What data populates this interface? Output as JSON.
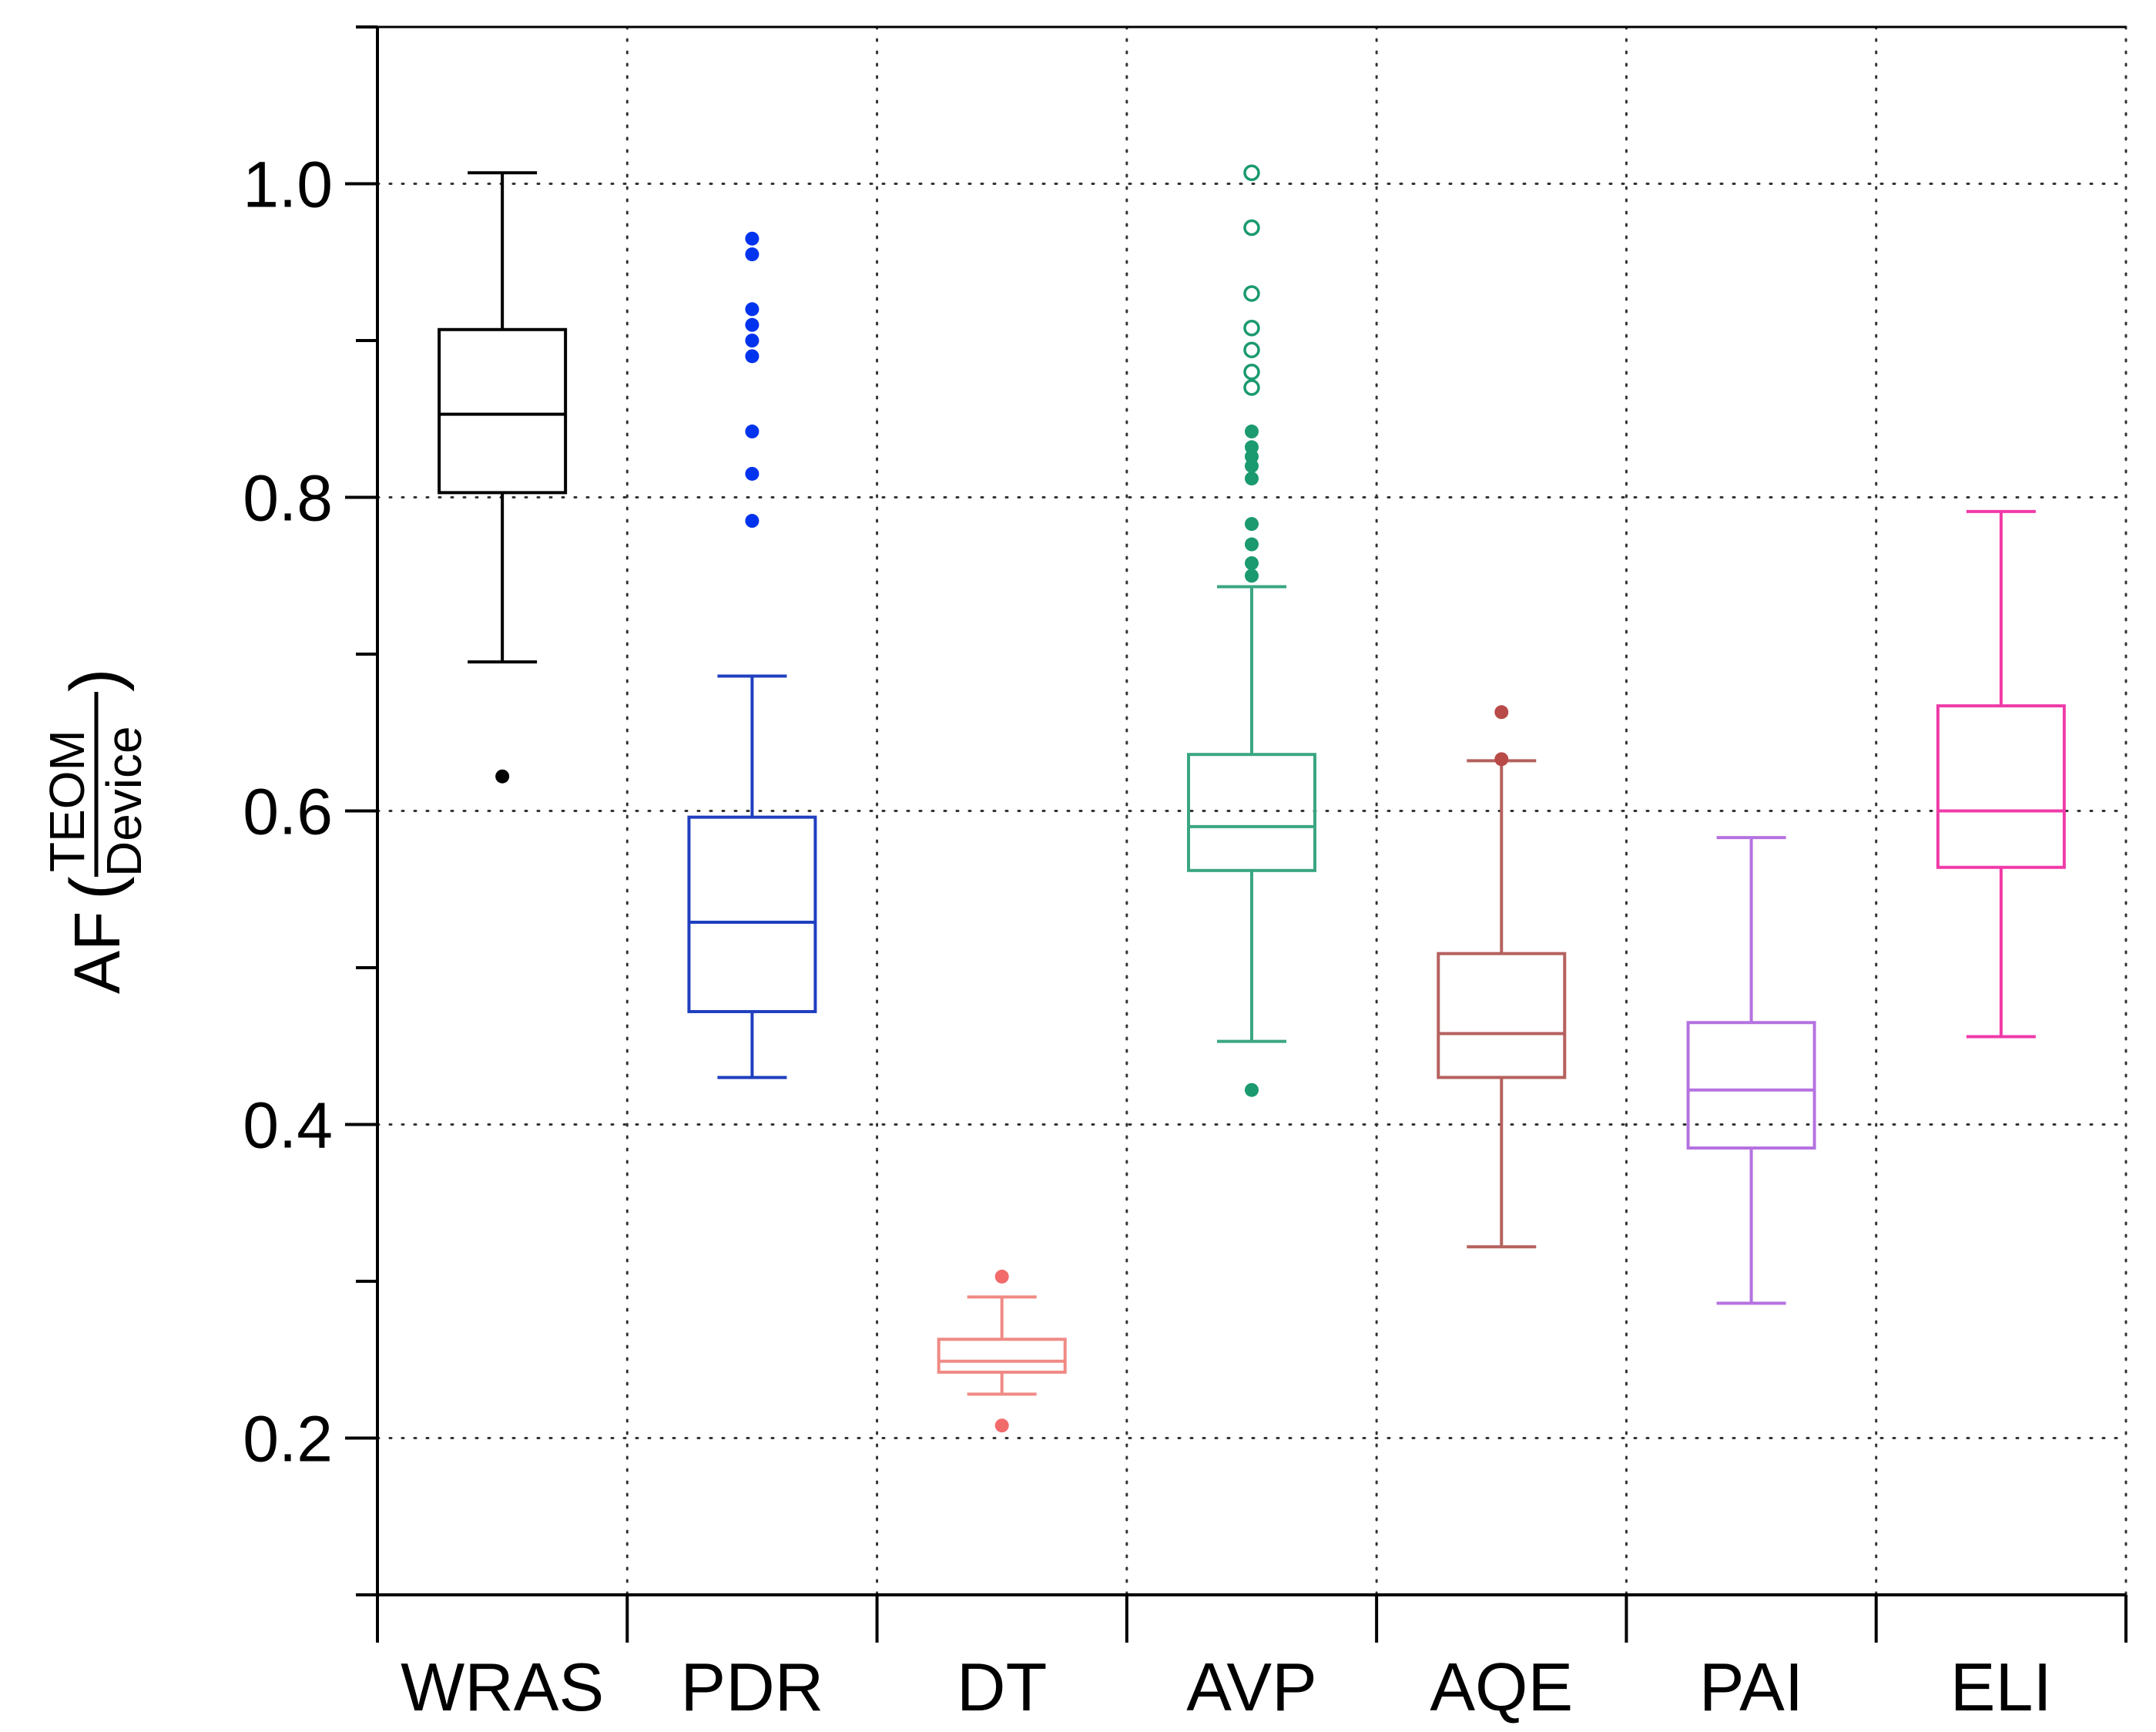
{
  "chart_data": {
    "type": "boxplot",
    "title": "",
    "xlabel": "",
    "ylabel": {
      "prefix": "AF",
      "numerator": "TEOM",
      "denominator": "Device"
    },
    "ylim": [
      0.1,
      1.1
    ],
    "yticks_major": [
      0.2,
      0.4,
      0.6,
      0.8,
      1.0
    ],
    "ytick_labels": [
      "0.2",
      "0.4",
      "0.6",
      "0.8",
      "1.0"
    ],
    "yticks_minor": [
      0.1,
      0.3,
      0.5,
      0.7,
      0.9,
      1.1
    ],
    "grid": true,
    "categories": [
      "WRAS",
      "PDR",
      "DT",
      "AVP",
      "AQE",
      "PAI",
      "ELI"
    ],
    "series": [
      {
        "name": "WRAS",
        "color": "#000000",
        "whisker_low": 0.695,
        "q1": 0.803,
        "median": 0.853,
        "q3": 0.907,
        "whisker_high": 1.007,
        "outlier_style": "filled",
        "outliers": [
          0.622
        ]
      },
      {
        "name": "PDR",
        "color": "#1f3fbf",
        "outlier_color": "#0033ee",
        "whisker_low": 0.43,
        "q1": 0.472,
        "median": 0.529,
        "q3": 0.596,
        "whisker_high": 0.686,
        "outlier_style": "filled",
        "outliers": [
          0.965,
          0.955,
          0.92,
          0.91,
          0.9,
          0.89,
          0.842,
          0.815,
          0.785
        ]
      },
      {
        "name": "DT",
        "color": "#f08a85",
        "outlier_color": "#f26b6b",
        "whisker_low": 0.228,
        "q1": 0.242,
        "median": 0.249,
        "q3": 0.263,
        "whisker_high": 0.29,
        "outlier_style": "filled",
        "outliers": [
          0.303,
          0.208
        ]
      },
      {
        "name": "AVP",
        "color": "#3aa683",
        "outlier_color": "#1a9a6e",
        "whisker_low": 0.453,
        "q1": 0.562,
        "median": 0.59,
        "q3": 0.636,
        "whisker_high": 0.743,
        "outlier_style": "mixed",
        "outliers_open": [
          1.007,
          0.972,
          0.93,
          0.908,
          0.894,
          0.88,
          0.87
        ],
        "outliers": [
          0.842,
          0.832,
          0.826,
          0.82,
          0.812,
          0.783,
          0.77,
          0.758,
          0.75,
          0.422
        ]
      },
      {
        "name": "AQE",
        "color": "#b5615e",
        "outlier_color": "#b84a48",
        "whisker_low": 0.322,
        "q1": 0.43,
        "median": 0.458,
        "q3": 0.509,
        "whisker_high": 0.632,
        "outlier_style": "filled",
        "outliers": [
          0.663,
          0.633
        ]
      },
      {
        "name": "PAI",
        "color": "#b572e0",
        "outlier_color": "#b572e0",
        "whisker_low": 0.286,
        "q1": 0.385,
        "median": 0.422,
        "q3": 0.465,
        "whisker_high": 0.583,
        "outlier_style": "filled",
        "outliers": []
      },
      {
        "name": "ELI",
        "color": "#f03aa8",
        "outlier_color": "#f03aa8",
        "whisker_low": 0.456,
        "q1": 0.564,
        "median": 0.6,
        "q3": 0.667,
        "whisker_high": 0.791,
        "outlier_style": "filled",
        "outliers": []
      }
    ]
  }
}
